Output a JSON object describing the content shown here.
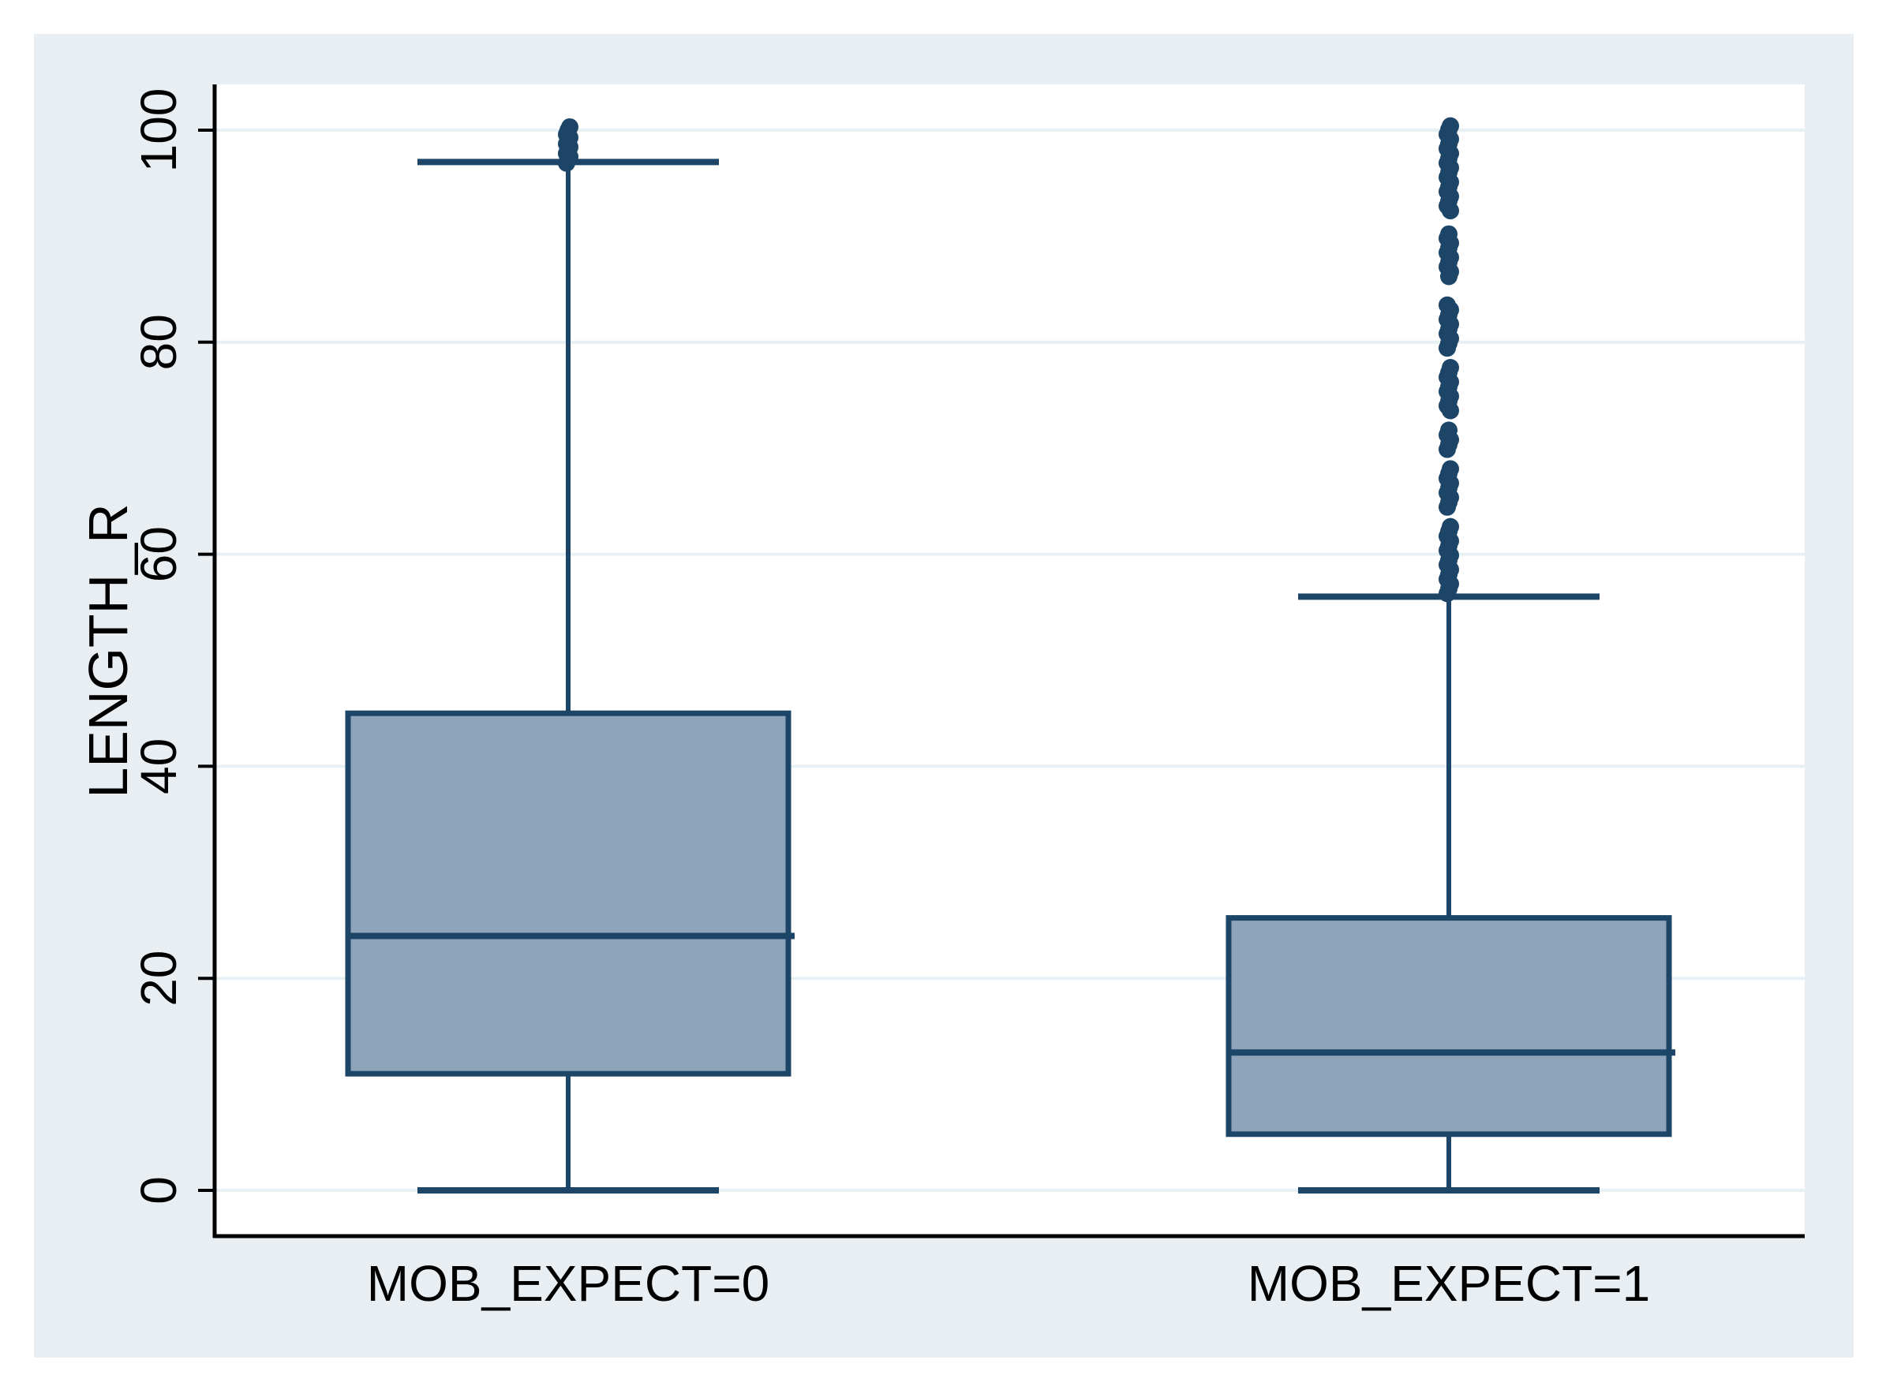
{
  "figure": {
    "background": "#ffffff",
    "canvas_color": "#e9eef2",
    "plot_background": "#ffffff",
    "gridline_color": "#e7f0f5",
    "axis_color": "#000000",
    "text_color": "#000000",
    "box_fill": "#8da4ba",
    "box_stroke": "#1d4568"
  },
  "chart_data": {
    "type": "box",
    "title": "",
    "xlabel": "",
    "ylabel": "LENGTH_R",
    "ylim": [
      0,
      100
    ],
    "yticks": [
      0,
      20,
      40,
      60,
      80,
      100
    ],
    "grid": true,
    "legend": "none",
    "categories": [
      "MOB_EXPECT=0",
      "MOB_EXPECT=1"
    ],
    "groups": [
      {
        "label": "MOB_EXPECT=0",
        "q1": 11,
        "median": 24,
        "q3": 45,
        "whisker_low": 0,
        "whisker_high": 97,
        "outliers": [
          96.9,
          97.2,
          97.5,
          97.8,
          98.1,
          98.4,
          98.7,
          99.0,
          99.3,
          99.6,
          100.0,
          100.3
        ]
      },
      {
        "label": "MOB_EXPECT=1",
        "q1": 5.3,
        "median": 13,
        "q3": 25.7,
        "whisker_low": 0,
        "whisker_high": 56,
        "outliers": [
          56.3,
          56.75,
          57.2,
          57.65,
          58.1,
          58.55,
          59.0,
          59.45,
          59.9,
          60.35,
          60.8,
          61.25,
          61.7,
          62.15,
          62.6,
          64.45,
          64.9,
          65.35,
          65.8,
          66.25,
          66.7,
          67.15,
          67.6,
          68.05,
          69.9,
          70.35,
          70.8,
          71.25,
          71.7,
          73.55,
          74.0,
          74.45,
          74.9,
          75.35,
          75.8,
          76.25,
          76.7,
          77.15,
          77.6,
          79.45,
          79.9,
          80.35,
          80.8,
          81.25,
          81.7,
          82.15,
          82.6,
          83.05,
          83.5,
          86.2,
          86.65,
          87.1,
          87.55,
          88.0,
          88.45,
          88.9,
          89.35,
          89.8,
          90.2,
          92.4,
          92.85,
          93.3,
          93.75,
          94.2,
          94.65,
          95.1,
          95.55,
          96.0,
          96.45,
          96.9,
          97.35,
          97.8,
          98.25,
          98.7,
          99.15,
          99.6,
          100.05,
          100.4
        ]
      }
    ]
  }
}
